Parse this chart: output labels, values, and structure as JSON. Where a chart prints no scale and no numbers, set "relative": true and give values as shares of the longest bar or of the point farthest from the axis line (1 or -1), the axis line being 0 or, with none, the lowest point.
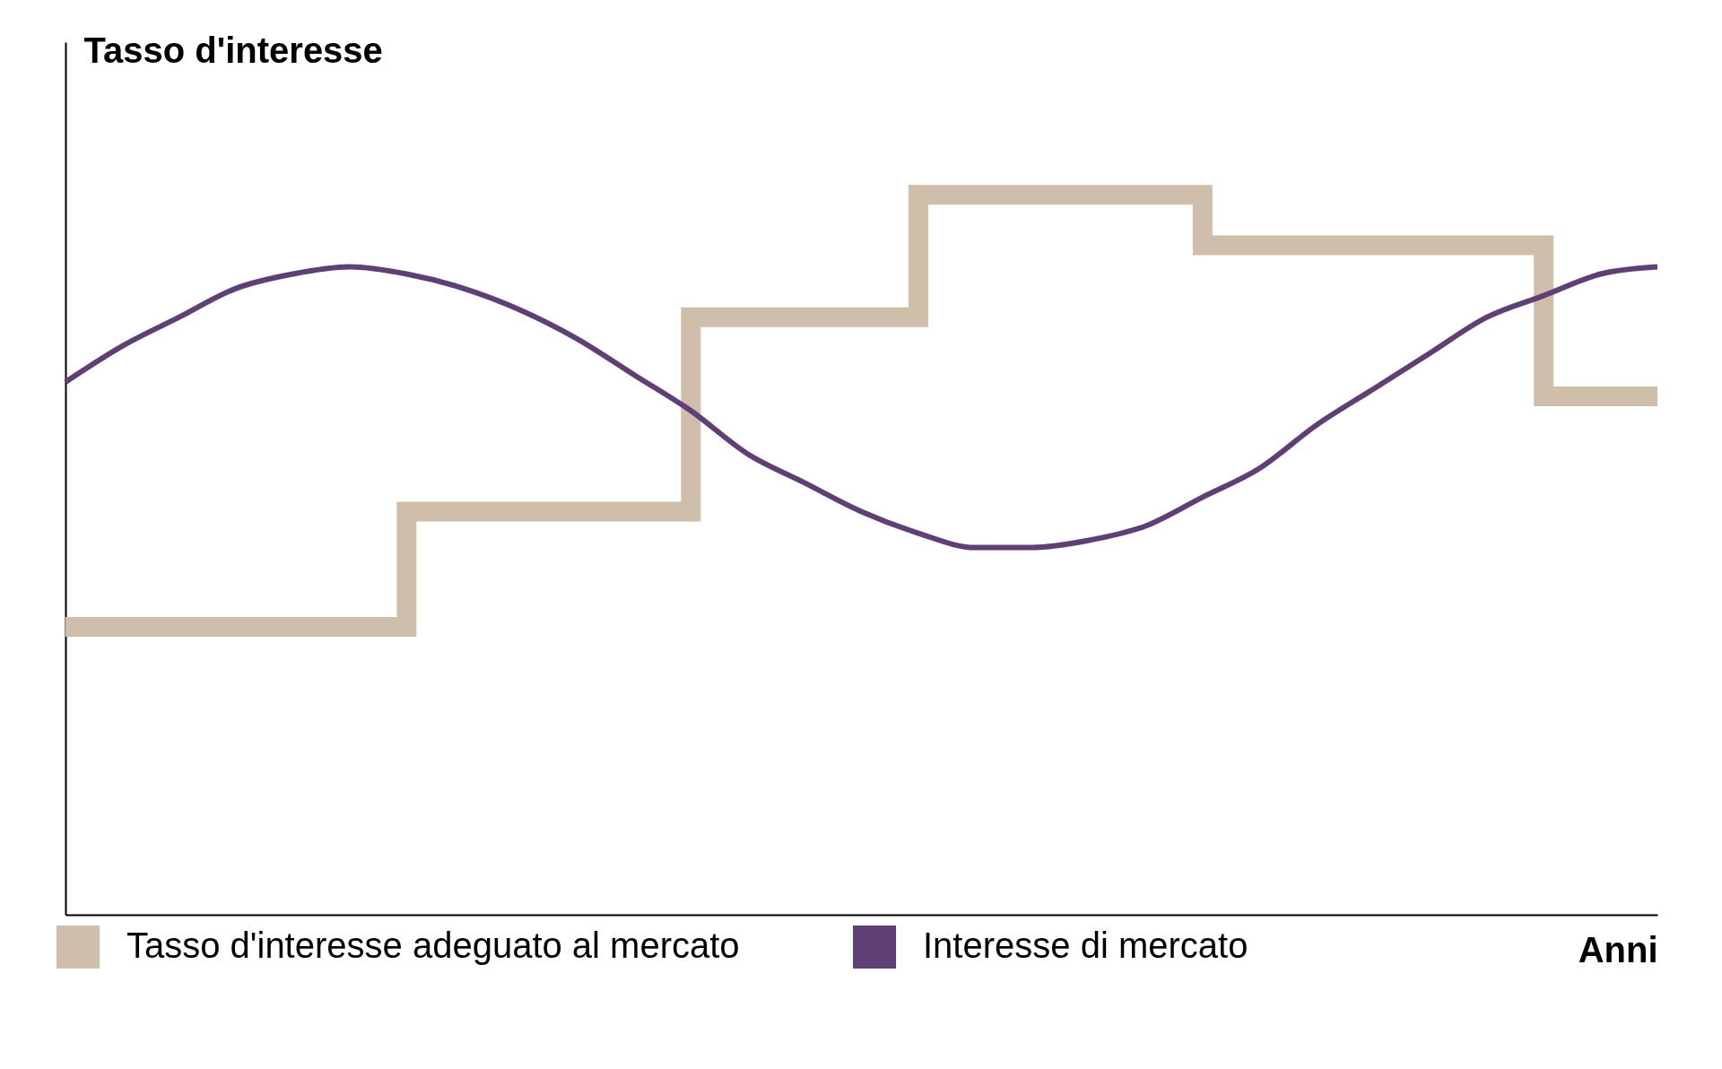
{
  "chart_data": {
    "type": "line",
    "ylabel": "Tasso d'interesse",
    "xlabel": "Anni",
    "relative": true,
    "tick_labels": false,
    "legend": "bottom",
    "categories": [
      null,
      null,
      null,
      null,
      null,
      null,
      null,
      null,
      null,
      null,
      null,
      null,
      null,
      null,
      null,
      null,
      null,
      null,
      null,
      null,
      null,
      null,
      null,
      null,
      null,
      null,
      null,
      null,
      null
    ],
    "series": [
      {
        "name": "Tasso d'interesse adeguato al mercato",
        "type": "step",
        "color": "#cfbeaa",
        "values": [
          0.4,
          0.4,
          0.4,
          0.4,
          0.4,
          0.4,
          0.56,
          0.56,
          0.56,
          0.56,
          0.56,
          0.83,
          0.83,
          0.83,
          0.83,
          1,
          1,
          1,
          1,
          1,
          0.93,
          0.93,
          0.93,
          0.93,
          0.93,
          0.93,
          0.72,
          0.72,
          0.72
        ]
      },
      {
        "name": "Interesse di mercato",
        "type": "line",
        "color": "#5e3f76",
        "values": [
          0.74,
          0.79,
          0.83,
          0.87,
          0.89,
          0.9,
          0.89,
          0.87,
          0.84,
          0.8,
          0.75,
          0.7,
          0.64,
          0.6,
          0.56,
          0.53,
          0.51,
          0.51,
          0.52,
          0.54,
          0.58,
          0.62,
          0.68,
          0.73,
          0.78,
          0.83,
          0.86,
          0.89,
          0.9
        ]
      }
    ]
  }
}
